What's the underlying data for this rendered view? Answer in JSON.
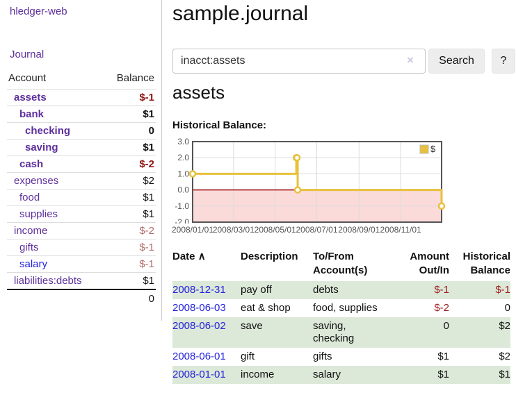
{
  "colors": {
    "link_purple": "#5e2f9d",
    "link_blue": "#2323dd",
    "negative_strong": "#8f1414",
    "negative_soft": "#b36b6b",
    "row_stripe_green": "#dce8d8",
    "chart_line_gold": "#E7C13D",
    "chart_negative_fill": "#fbdada",
    "chart_zero_line": "#a31f1f"
  },
  "app": {
    "brand": "hledger-web",
    "nav_journal": "Journal"
  },
  "sidebar": {
    "account_header": "Account",
    "balance_header": "Balance",
    "rows": [
      {
        "account": "assets",
        "balance": "$-1",
        "level": 1,
        "bold": true,
        "neg": "strong",
        "link": "purple"
      },
      {
        "account": "bank",
        "balance": "$1",
        "level": 2,
        "bold": true,
        "neg": "none",
        "link": "purple"
      },
      {
        "account": "checking",
        "balance": "0",
        "level": 3,
        "bold": true,
        "neg": "none",
        "link": "purple"
      },
      {
        "account": "saving",
        "balance": "$1",
        "level": 3,
        "bold": true,
        "neg": "none",
        "link": "purple"
      },
      {
        "account": "cash",
        "balance": "$-2",
        "level": 2,
        "bold": true,
        "neg": "strong",
        "link": "purple"
      },
      {
        "account": "expenses",
        "balance": "$2",
        "level": 1,
        "bold": false,
        "neg": "none",
        "link": "purple"
      },
      {
        "account": "food",
        "balance": "$1",
        "level": 2,
        "bold": false,
        "neg": "none",
        "link": "purple"
      },
      {
        "account": "supplies",
        "balance": "$1",
        "level": 2,
        "bold": false,
        "neg": "none",
        "link": "purple"
      },
      {
        "account": "income",
        "balance": "$-2",
        "level": 1,
        "bold": false,
        "neg": "soft",
        "link": "purple"
      },
      {
        "account": "gifts",
        "balance": "$-1",
        "level": 2,
        "bold": false,
        "neg": "soft",
        "link": "purple"
      },
      {
        "account": "salary",
        "balance": "$-1",
        "level": 2,
        "bold": false,
        "neg": "soft",
        "link": "blue"
      },
      {
        "account": "liabilities:debts",
        "balance": "$1",
        "level": 1,
        "bold": false,
        "neg": "none",
        "link": "purple"
      }
    ],
    "total": "0"
  },
  "header": {
    "title": "sample.journal"
  },
  "search": {
    "value": "inacct:assets",
    "clear_icon": "×",
    "search_button": "Search",
    "help_button": "?"
  },
  "account_view": {
    "heading": "assets",
    "chart_title": "Historical Balance:"
  },
  "chart_data": {
    "type": "line",
    "step": true,
    "title": "Historical Balance:",
    "legend": [
      {
        "name": "$",
        "color": "#E7C13D"
      }
    ],
    "legend_position": "top-right",
    "grid": true,
    "x_start": "2008-01-01",
    "x_end": "2008-12-31",
    "xticks": [
      "2008/01/01",
      "2008/03/01",
      "2008/05/01",
      "2008/07/01",
      "2008/09/01",
      "2008/11/01"
    ],
    "yticks": [
      3.0,
      2.0,
      1.0,
      0.0,
      -1.0,
      -2.0
    ],
    "ylim": [
      -2.0,
      3.0
    ],
    "series": [
      {
        "name": "$",
        "points": [
          [
            "2008-01-01",
            1
          ],
          [
            "2008-06-01",
            2
          ],
          [
            "2008-06-02",
            2
          ],
          [
            "2008-06-03",
            0
          ],
          [
            "2008-12-31",
            -1
          ]
        ]
      }
    ]
  },
  "register": {
    "headers": {
      "date": "Date",
      "description": "Description",
      "accounts": "To/From Account(s)",
      "amount": "Amount Out/In",
      "balance": "Historical Balance"
    },
    "sort_indicator": "∧",
    "rows": [
      {
        "date": "2008-12-31",
        "description": "pay off",
        "accounts": "debts",
        "amount": "$-1",
        "balance": "$-1",
        "amount_neg": true,
        "balance_neg": true
      },
      {
        "date": "2008-06-03",
        "description": "eat & shop",
        "accounts": "food, supplies",
        "amount": "$-2",
        "balance": "0",
        "amount_neg": true,
        "balance_neg": false
      },
      {
        "date": "2008-06-02",
        "description": "save",
        "accounts": "saving, checking",
        "amount": "0",
        "balance": "$2",
        "amount_neg": false,
        "balance_neg": false
      },
      {
        "date": "2008-06-01",
        "description": "gift",
        "accounts": "gifts",
        "amount": "$1",
        "balance": "$2",
        "amount_neg": false,
        "balance_neg": false
      },
      {
        "date": "2008-01-01",
        "description": "income",
        "accounts": "salary",
        "amount": "$1",
        "balance": "$1",
        "amount_neg": false,
        "balance_neg": false
      }
    ]
  }
}
